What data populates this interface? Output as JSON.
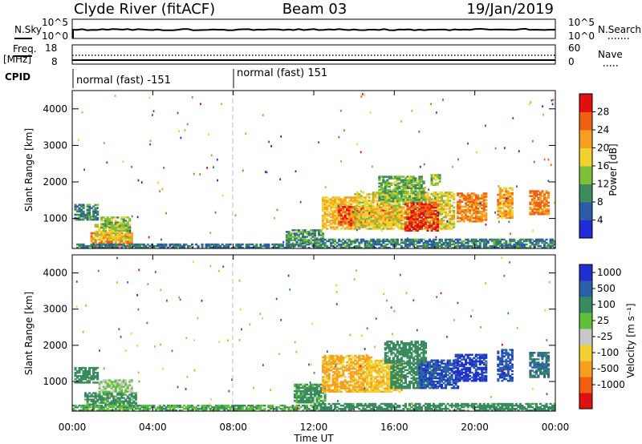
{
  "header": {
    "station": "Clyde River (fitACF)",
    "beam": "Beam 03",
    "date": "19/Jan/2019"
  },
  "aux_panels": {
    "nsky_label": "N.Sky",
    "nsearch_label": "N.Search",
    "nsky_ticks": [
      "10^5",
      "10^0"
    ],
    "nsearch_ticks": [
      "10^5",
      "10^0"
    ],
    "freq_label": "Freq.",
    "freq_unit": "[MHz]",
    "freq_ticks": [
      "18",
      "8"
    ],
    "nave_label": "Nave",
    "nave_ticks": [
      "60",
      "0"
    ],
    "cpid_label": "CPID",
    "cpid_segments": [
      "normal (fast) -151",
      "normal (fast) 151"
    ]
  },
  "axes": {
    "ylabel": "Slant Range [km]",
    "xlabel": "Time UT",
    "time_ticks": [
      "00:00",
      "04:00",
      "08:00",
      "12:00",
      "16:00",
      "20:00",
      "00:00"
    ],
    "range_ticks": [
      "1000",
      "2000",
      "3000",
      "4000"
    ]
  },
  "colorbars": {
    "power": {
      "label": "Power [dB]",
      "ticks": [
        "4",
        "8",
        "12",
        "16",
        "20",
        "24",
        "28"
      ],
      "colors": [
        "#1f2bd9",
        "#2b5aa8",
        "#3d8a5c",
        "#7cbf3a",
        "#f2d22e",
        "#f7a020",
        "#f06010",
        "#e11010"
      ]
    },
    "velocity": {
      "label": "Velocity [m s⁻¹]",
      "ticks": [
        "1000",
        "500",
        "100",
        "25",
        "-25",
        "-100",
        "-500",
        "-1000"
      ],
      "colors": [
        "#2030d0",
        "#2a60a8",
        "#3a8a60",
        "#5dc13a",
        "#c8c8c8",
        "#f2d22e",
        "#f7a020",
        "#f06010",
        "#e11010"
      ]
    }
  },
  "chart_data": [
    {
      "type": "heatmap",
      "title": "Power",
      "xlabel": "Time UT",
      "ylabel": "Slant Range [km]",
      "xlim": [
        0,
        24
      ],
      "ylim": [
        180,
        4500
      ],
      "value_label": "Power [dB]",
      "color_range": [
        0,
        32
      ],
      "blobs": [
        {
          "t0": 0.1,
          "t1": 1.3,
          "r0": 950,
          "r1": 1400,
          "value": 9
        },
        {
          "t0": 0.9,
          "t1": 3.0,
          "r0": 220,
          "r1": 600,
          "value": 24
        },
        {
          "t0": 1.1,
          "t1": 2.9,
          "r0": 400,
          "r1": 850,
          "value": 18
        },
        {
          "t0": 1.4,
          "t1": 2.9,
          "r0": 650,
          "r1": 1050,
          "value": 14
        },
        {
          "t0": 0.2,
          "t1": 12.0,
          "r0": 180,
          "r1": 300,
          "value": 8
        },
        {
          "t0": 10.6,
          "t1": 12.4,
          "r0": 300,
          "r1": 700,
          "value": 10
        },
        {
          "t0": 12.4,
          "t1": 14.0,
          "r0": 700,
          "r1": 1600,
          "value": 20
        },
        {
          "t0": 13.2,
          "t1": 16.3,
          "r0": 800,
          "r1": 1300,
          "value": 26
        },
        {
          "t0": 14.0,
          "t1": 19.0,
          "r0": 700,
          "r1": 1700,
          "value": 18
        },
        {
          "t0": 16.5,
          "t1": 18.2,
          "r0": 650,
          "r1": 1450,
          "value": 28
        },
        {
          "t0": 15.2,
          "t1": 17.5,
          "r0": 1450,
          "r1": 2150,
          "value": 13
        },
        {
          "t0": 17.8,
          "t1": 18.3,
          "r0": 1900,
          "r1": 2200,
          "value": 14
        },
        {
          "t0": 19.1,
          "t1": 20.6,
          "r0": 900,
          "r1": 1700,
          "value": 24
        },
        {
          "t0": 21.1,
          "t1": 21.9,
          "r0": 1000,
          "r1": 1850,
          "value": 22
        },
        {
          "t0": 22.7,
          "t1": 23.7,
          "r0": 1100,
          "r1": 1750,
          "value": 24
        },
        {
          "t0": 12.0,
          "t1": 24.0,
          "r0": 180,
          "r1": 420,
          "value": 9
        }
      ]
    },
    {
      "type": "heatmap",
      "title": "Velocity",
      "xlabel": "Time UT",
      "ylabel": "Slant Range [km]",
      "xlim": [
        0,
        24
      ],
      "ylim": [
        180,
        4500
      ],
      "value_label": "Velocity [m s-1]",
      "color_levels": [
        1000,
        500,
        100,
        25,
        -25,
        -100,
        -500,
        -1000
      ],
      "blobs": [
        {
          "t0": 0.1,
          "t1": 1.3,
          "r0": 950,
          "r1": 1400,
          "value": 150
        },
        {
          "t0": 0.6,
          "t1": 3.2,
          "r0": 300,
          "r1": 700,
          "value": 80
        },
        {
          "t0": 1.3,
          "t1": 3.0,
          "r0": 700,
          "r1": 1050,
          "value": 0
        },
        {
          "t0": 0.0,
          "t1": 12.0,
          "r0": 180,
          "r1": 330,
          "value": 60
        },
        {
          "t0": 11.0,
          "t1": 12.5,
          "r0": 400,
          "r1": 900,
          "value": 80
        },
        {
          "t0": 12.4,
          "t1": 14.8,
          "r0": 700,
          "r1": 1700,
          "value": -350
        },
        {
          "t0": 14.6,
          "t1": 16.4,
          "r0": 700,
          "r1": 1600,
          "value": -250
        },
        {
          "t0": 15.8,
          "t1": 18.0,
          "r0": 800,
          "r1": 1500,
          "value": 200
        },
        {
          "t0": 17.2,
          "t1": 19.2,
          "r0": 800,
          "r1": 1600,
          "value": 700
        },
        {
          "t0": 15.5,
          "t1": 17.6,
          "r0": 1500,
          "r1": 2100,
          "value": 150
        },
        {
          "t0": 19.0,
          "t1": 20.6,
          "r0": 1000,
          "r1": 1750,
          "value": 900
        },
        {
          "t0": 21.1,
          "t1": 21.9,
          "r0": 1000,
          "r1": 1900,
          "value": 650
        },
        {
          "t0": 22.7,
          "t1": 23.7,
          "r0": 1100,
          "r1": 1800,
          "value": 300
        },
        {
          "t0": 12.0,
          "t1": 24.0,
          "r0": 180,
          "r1": 400,
          "value": 90
        }
      ]
    }
  ]
}
